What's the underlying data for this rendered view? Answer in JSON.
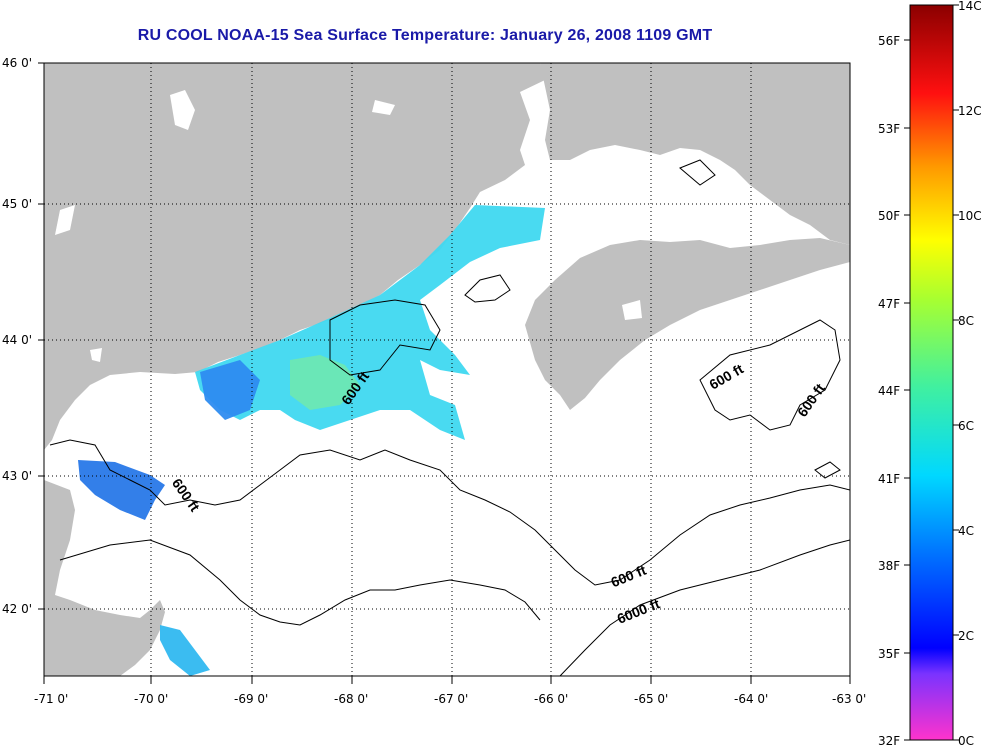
{
  "title": "RU COOL  NOAA-15  Sea Surface Temperature:  January 26, 2008 1109 GMT",
  "map": {
    "lon_ticks": [
      "-71 0'",
      "-70 0'",
      "-69 0'",
      "-68 0'",
      "-67 0'",
      "-66 0'",
      "-65 0'",
      "-64 0'",
      "-63 0'"
    ],
    "lat_ticks": [
      "46 0'",
      "45 0'",
      "44 0'",
      "43 0'",
      "42 0'"
    ],
    "contour_labels": [
      "600 ft",
      "600 ft",
      "600 ft",
      "600 ft",
      "600 ft",
      "6000 ft"
    ],
    "colors": {
      "land": "#c0c0c0",
      "ocean": "#ffffff",
      "grid": "#000000"
    }
  },
  "colorbar": {
    "celsius_labels": [
      "14C",
      "12C",
      "10C",
      "8C",
      "6C",
      "4C",
      "2C",
      "0C"
    ],
    "fahrenheit_labels": [
      "56F",
      "53F",
      "50F",
      "47F",
      "44F",
      "41F",
      "38F",
      "35F",
      "32F"
    ],
    "range_c": [
      0,
      14
    ]
  }
}
